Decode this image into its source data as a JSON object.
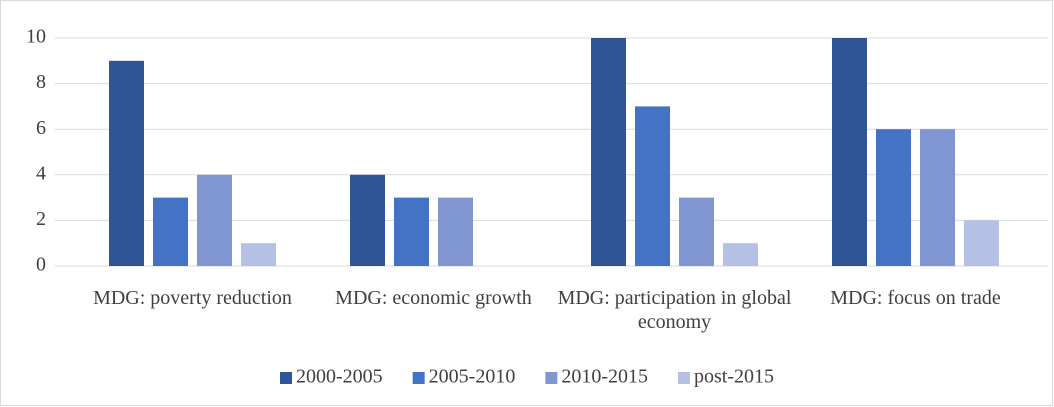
{
  "chart_data": {
    "type": "bar",
    "categories": [
      "MDG: poverty reduction",
      "MDG: economic growth",
      "MDG: participation in global economy",
      "MDG: focus on trade"
    ],
    "series": [
      {
        "name": "2000-2005",
        "color": "#2f5597",
        "values": [
          9,
          4,
          10,
          10
        ]
      },
      {
        "name": "2005-2010",
        "color": "#4472c4",
        "values": [
          3,
          3,
          7,
          6
        ]
      },
      {
        "name": "2010-2015",
        "color": "#7f96d2",
        "values": [
          4,
          3,
          3,
          6
        ]
      },
      {
        "name": "post-2015",
        "color": "#b4c0e4",
        "values": [
          1,
          0,
          1,
          2
        ]
      }
    ],
    "ylim": [
      0,
      10
    ],
    "yticks": [
      0,
      2,
      4,
      6,
      8,
      10
    ],
    "grid": true,
    "legend": "bottom"
  }
}
